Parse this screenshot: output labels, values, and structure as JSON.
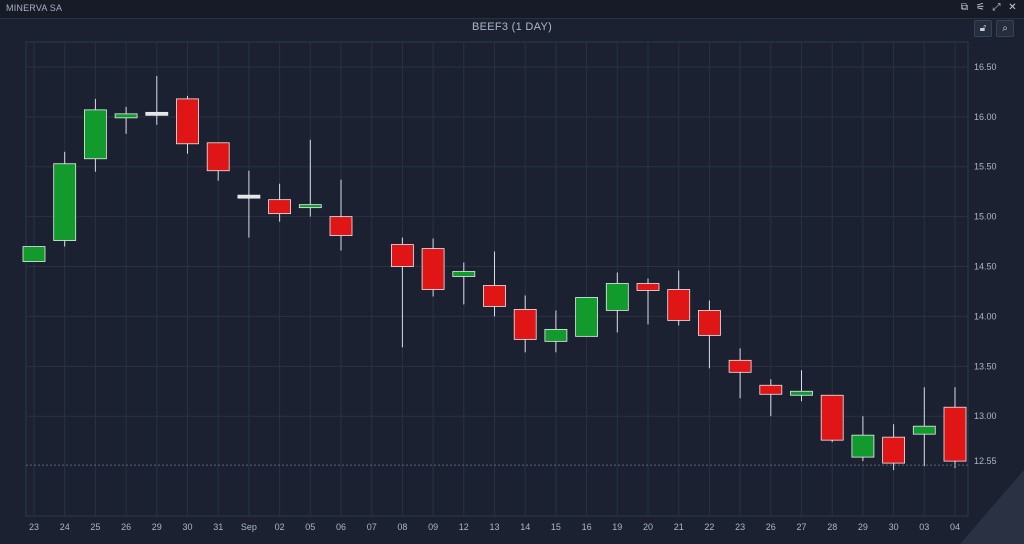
{
  "app": {
    "title": "MINERVA SA",
    "window_icons": [
      "window-icon",
      "settings-icon",
      "expand-icon",
      "close-icon"
    ]
  },
  "toolbar": {
    "lock_icon": "lock-icon",
    "zoom_icon": "zoom-icon"
  },
  "colors": {
    "up": "#139a2c",
    "down": "#e01515",
    "neutral": "#e6e6e6",
    "background": "#1b2130",
    "grid": "#2a3242"
  },
  "chart_data": {
    "type": "candlestick",
    "title": "BEEF3 (1 DAY)",
    "ylim": [
      12.0,
      16.75
    ],
    "yticks": [
      13.0,
      13.5,
      14.0,
      14.5,
      15.0,
      15.5,
      16.0,
      16.5
    ],
    "last_price_label": "12.55",
    "grid": true,
    "categories": [
      "23",
      "24",
      "25",
      "26",
      "29",
      "30",
      "31",
      "Sep",
      "02",
      "05",
      "06",
      "07",
      "08",
      "09",
      "12",
      "13",
      "14",
      "15",
      "16",
      "19",
      "20",
      "21",
      "22",
      "23",
      "26",
      "27",
      "28",
      "29",
      "30",
      "03",
      "04"
    ],
    "ohlc": [
      {
        "open": 14.55,
        "high": 14.7,
        "low": 14.55,
        "close": 14.7
      },
      {
        "open": 14.76,
        "high": 15.65,
        "low": 14.7,
        "close": 15.53
      },
      {
        "open": 15.58,
        "high": 16.18,
        "low": 15.45,
        "close": 16.07
      },
      {
        "open": 15.99,
        "high": 16.1,
        "low": 15.83,
        "close": 16.03
      },
      {
        "open": 16.03,
        "high": 16.41,
        "low": 15.92,
        "close": 16.03
      },
      {
        "open": 16.18,
        "high": 16.21,
        "low": 15.63,
        "close": 15.73
      },
      {
        "open": 15.74,
        "high": 15.74,
        "low": 15.36,
        "close": 15.46
      },
      {
        "open": 15.2,
        "high": 15.46,
        "low": 14.79,
        "close": 15.2
      },
      {
        "open": 15.17,
        "high": 15.33,
        "low": 14.95,
        "close": 15.03
      },
      {
        "open": 15.09,
        "high": 15.77,
        "low": 15.0,
        "close": 15.12
      },
      {
        "open": 15.0,
        "high": 15.37,
        "low": 14.66,
        "close": 14.81
      },
      null,
      {
        "open": 14.72,
        "high": 14.79,
        "low": 13.69,
        "close": 14.5
      },
      {
        "open": 14.68,
        "high": 14.78,
        "low": 14.2,
        "close": 14.27
      },
      {
        "open": 14.4,
        "high": 14.54,
        "low": 14.12,
        "close": 14.45
      },
      {
        "open": 14.31,
        "high": 14.65,
        "low": 14.0,
        "close": 14.1
      },
      {
        "open": 14.07,
        "high": 14.21,
        "low": 13.64,
        "close": 13.77
      },
      {
        "open": 13.75,
        "high": 14.06,
        "low": 13.64,
        "close": 13.87
      },
      {
        "open": 13.8,
        "high": 14.19,
        "low": 13.8,
        "close": 14.19
      },
      {
        "open": 14.06,
        "high": 14.44,
        "low": 13.84,
        "close": 14.33
      },
      {
        "open": 14.33,
        "high": 14.38,
        "low": 13.92,
        "close": 14.26
      },
      {
        "open": 14.27,
        "high": 14.46,
        "low": 13.91,
        "close": 13.96
      },
      {
        "open": 14.06,
        "high": 14.16,
        "low": 13.48,
        "close": 13.81
      },
      {
        "open": 13.56,
        "high": 13.68,
        "low": 13.18,
        "close": 13.44
      },
      {
        "open": 13.31,
        "high": 13.37,
        "low": 13.0,
        "close": 13.22
      },
      {
        "open": 13.21,
        "high": 13.46,
        "low": 13.15,
        "close": 13.25
      },
      {
        "open": 13.21,
        "high": 13.21,
        "low": 12.74,
        "close": 12.76
      },
      {
        "open": 12.59,
        "high": 13.0,
        "low": 12.55,
        "close": 12.81
      },
      {
        "open": 12.79,
        "high": 12.92,
        "low": 12.46,
        "close": 12.53
      },
      {
        "open": 12.82,
        "high": 13.29,
        "low": 12.5,
        "close": 12.9
      },
      {
        "open": 13.09,
        "high": 13.29,
        "low": 12.48,
        "close": 12.55
      }
    ]
  }
}
